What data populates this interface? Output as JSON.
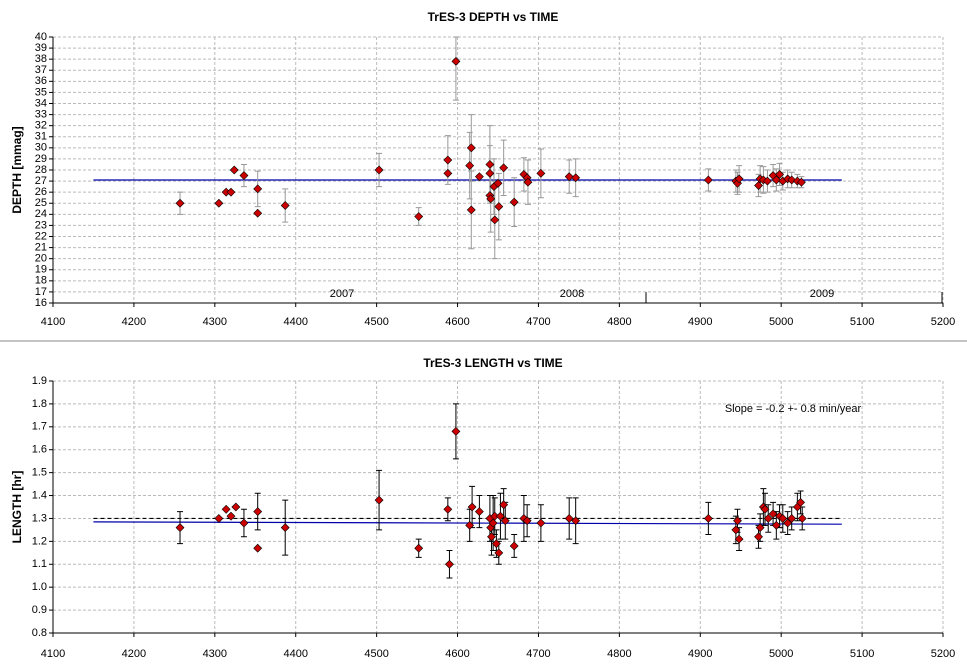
{
  "chart_data": [
    {
      "type": "scatter",
      "title": "TrES-3 DEPTH vs TIME",
      "ylabel": "DEPTH [mmag]",
      "x": [
        4257,
        4305,
        4314,
        4320,
        4324,
        4336,
        4353,
        4353,
        4387,
        4503,
        4552,
        4588,
        4588,
        4598,
        4615,
        4617,
        4617,
        4627,
        4640,
        4640,
        4640,
        4641,
        4645,
        4646,
        4650,
        4651,
        4657,
        4670,
        4682,
        4686,
        4687,
        4703,
        4738,
        4746,
        4910,
        4944,
        4946,
        4948,
        4972,
        4974,
        4978,
        4983,
        4990,
        4994,
        4998,
        5002,
        5008,
        5013,
        5020,
        5025
      ],
      "values": [
        25.0,
        25.0,
        26.0,
        26.0,
        28.0,
        27.5,
        26.3,
        24.1,
        24.8,
        28.0,
        23.8,
        28.9,
        27.7,
        37.8,
        28.4,
        30.0,
        24.4,
        27.4,
        28.5,
        27.7,
        25.7,
        25.4,
        26.5,
        23.5,
        26.8,
        24.7,
        28.2,
        25.1,
        27.6,
        27.3,
        26.9,
        27.7,
        27.4,
        27.3,
        27.1,
        27.0,
        26.8,
        27.2,
        26.6,
        27.2,
        27.1,
        27.0,
        27.5,
        27.1,
        27.6,
        27.0,
        27.2,
        27.1,
        27.0,
        26.9
      ],
      "errors": [
        1.0,
        null,
        null,
        null,
        null,
        1.0,
        1.6,
        null,
        1.5,
        1.5,
        0.8,
        2.2,
        null,
        3.5,
        3.0,
        3.0,
        3.5,
        null,
        3.5,
        2.5,
        null,
        3.0,
        2.5,
        3.5,
        null,
        3.0,
        2.5,
        2.2,
        1.5,
        null,
        2.0,
        2.2,
        1.5,
        1.7,
        1.0,
        1.0,
        1.0,
        1.2,
        1.0,
        1.2,
        1.2,
        1.0,
        1.0,
        1.0,
        1.0,
        0.8,
        0.8,
        0.7,
        0.6,
        0.5
      ],
      "color": "#cc0000",
      "error_color": "#999999",
      "lines": [
        {
          "x": [
            4150,
            5075
          ],
          "values": [
            27.1,
            27.1
          ],
          "color": "#0000aa"
        }
      ],
      "xlim": [
        4100,
        5200
      ],
      "xticks": [
        4100,
        4200,
        4300,
        4400,
        4500,
        4600,
        4700,
        4800,
        4900,
        5000,
        5100,
        5200
      ],
      "ylim": [
        16,
        40
      ],
      "yticks": [
        16,
        17,
        18,
        19,
        20,
        21,
        22,
        23,
        24,
        25,
        26,
        27,
        28,
        29,
        30,
        31,
        32,
        33,
        34,
        35,
        36,
        37,
        38,
        39,
        40
      ],
      "grid": true,
      "annotations": [
        "2007",
        "2008",
        "2009"
      ]
    },
    {
      "type": "scatter",
      "title": "TrES-3 LENGTH vs TIME",
      "ylabel": "LENGTH [hr]",
      "x": [
        4257,
        4305,
        4314,
        4320,
        4326,
        4336,
        4353,
        4353,
        4387,
        4503,
        4552,
        4588,
        4590,
        4598,
        4615,
        4618,
        4627,
        4640,
        4641,
        4642,
        4644,
        4646,
        4648,
        4651,
        4653,
        4657,
        4659,
        4670,
        4682,
        4686,
        4703,
        4738,
        4746,
        4910,
        4944,
        4946,
        4948,
        4972,
        4974,
        4978,
        4980,
        4984,
        4990,
        4994,
        4998,
        5002,
        5008,
        5013,
        5020,
        5024,
        5026
      ],
      "values": [
        1.26,
        1.3,
        1.34,
        1.31,
        1.35,
        1.28,
        1.33,
        1.17,
        1.26,
        1.38,
        1.17,
        1.34,
        1.1,
        1.68,
        1.27,
        1.35,
        1.33,
        1.3,
        1.26,
        1.22,
        1.28,
        1.31,
        1.19,
        1.15,
        1.31,
        1.36,
        1.29,
        1.18,
        1.3,
        1.29,
        1.28,
        1.3,
        1.29,
        1.3,
        1.25,
        1.29,
        1.21,
        1.22,
        1.26,
        1.35,
        1.34,
        1.3,
        1.32,
        1.27,
        1.31,
        1.3,
        1.28,
        1.3,
        1.35,
        1.37,
        1.3
      ],
      "errors": [
        0.07,
        null,
        null,
        null,
        null,
        0.06,
        0.08,
        null,
        0.12,
        0.13,
        0.04,
        0.05,
        0.06,
        0.12,
        0.07,
        0.09,
        0.07,
        0.1,
        null,
        0.08,
        0.12,
        0.08,
        0.06,
        0.05,
        0.1,
        0.07,
        0.08,
        0.05,
        0.1,
        0.07,
        0.08,
        0.09,
        0.1,
        0.07,
        0.06,
        0.05,
        0.05,
        0.05,
        0.06,
        0.08,
        0.07,
        0.06,
        0.05,
        0.06,
        0.05,
        0.06,
        0.05,
        0.05,
        0.06,
        0.05,
        0.05
      ],
      "color": "#cc0000",
      "error_color": "#000000",
      "lines": [
        {
          "x": [
            4150,
            5075
          ],
          "values": [
            1.3,
            1.3
          ],
          "color": "#000000",
          "dashed": true
        },
        {
          "x": [
            4150,
            5075
          ],
          "values": [
            1.285,
            1.275
          ],
          "color": "#0000aa"
        }
      ],
      "xlim": [
        4100,
        5200
      ],
      "xticks": [
        4100,
        4200,
        4300,
        4400,
        4500,
        4600,
        4700,
        4800,
        4900,
        5000,
        5100,
        5200
      ],
      "ylim": [
        0.8,
        1.9
      ],
      "yticks": [
        0.8,
        0.9,
        {
          "value": 1,
          "label": "1.0"
        },
        1.1,
        1.2,
        1.3,
        1.4,
        1.5,
        1.6,
        1.7,
        1.8,
        1.9
      ],
      "grid": true,
      "annotations": [
        "Slope = -0.2 +- 0.8 min/year"
      ]
    }
  ]
}
